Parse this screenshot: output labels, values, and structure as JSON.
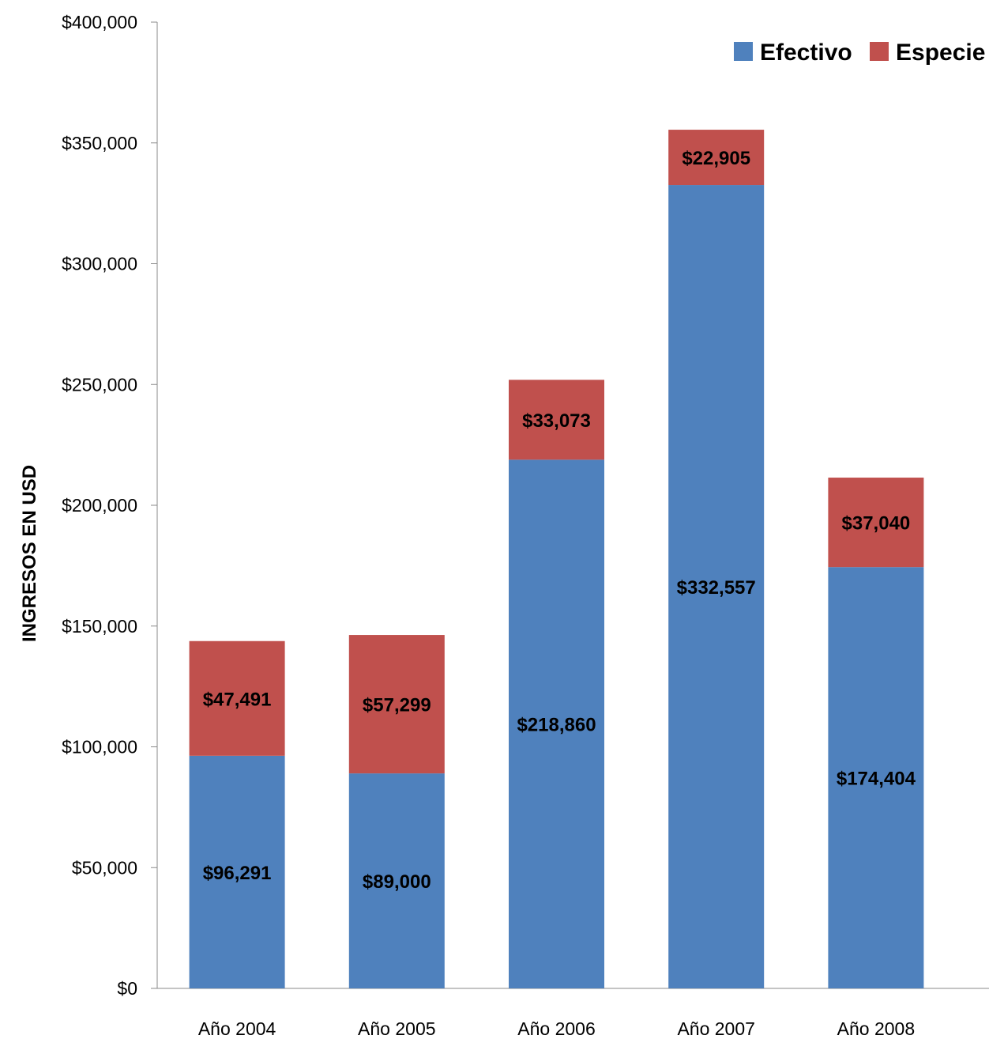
{
  "chart_data": {
    "type": "bar",
    "stacked": true,
    "categories": [
      "Año 2004",
      "Año 2005",
      "Año 2006",
      "Año 2007",
      "Año 2008"
    ],
    "series": [
      {
        "name": "Efectivo",
        "color": "#4F81BD",
        "values": [
          96291,
          89000,
          218860,
          332557,
          174404
        ],
        "labels": [
          "$96,291",
          "$89,000",
          "$218,860",
          "$332,557",
          "$174,404"
        ]
      },
      {
        "name": "Especie",
        "color": "#C0504D",
        "values": [
          47491,
          57299,
          33073,
          22905,
          37040
        ],
        "labels": [
          "$47,491",
          "$57,299",
          "$33,073",
          "$22,905",
          "$37,040"
        ]
      }
    ],
    "ylabel": "INGRESOS EN USD",
    "xlabel": "",
    "ylim": [
      0,
      400000
    ],
    "yticks": [
      0,
      50000,
      100000,
      150000,
      200000,
      250000,
      300000,
      350000,
      400000
    ],
    "ytick_labels": [
      "$0",
      "$50,000",
      "$100,000",
      "$150,000",
      "$200,000",
      "$250,000",
      "$300,000",
      "$350,000",
      "$400,000"
    ],
    "grid": false,
    "legend_position": "top-right"
  }
}
